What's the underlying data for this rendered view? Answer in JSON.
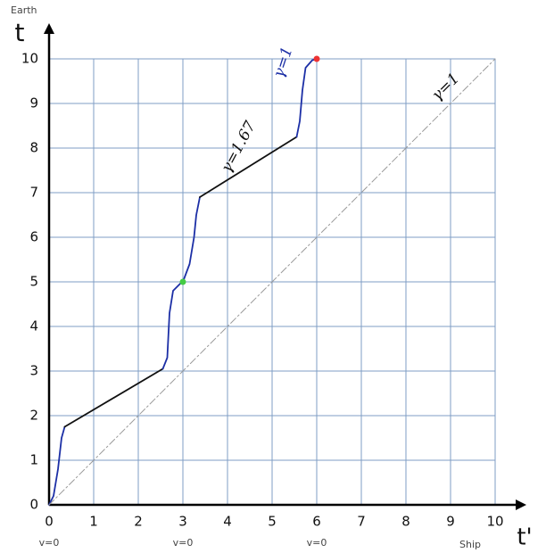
{
  "chart_data": {
    "type": "line",
    "y_label": "t",
    "x_label": "t'",
    "y_caption": "Earth",
    "x_caption": "Ship",
    "xlim": [
      0,
      10
    ],
    "ylim": [
      0,
      10
    ],
    "xticks": [
      0,
      1,
      2,
      3,
      4,
      5,
      6,
      7,
      8,
      9,
      10
    ],
    "yticks": [
      0,
      1,
      2,
      3,
      4,
      5,
      6,
      7,
      8,
      9,
      10
    ],
    "grid": true,
    "grid_color": "#7f9dc4",
    "series": [
      {
        "color": "#1c2fa6",
        "x": [
          0,
          0.1,
          0.2,
          0.28,
          0.35
        ],
        "values": [
          0,
          0.2,
          0.8,
          1.5,
          1.75
        ]
      },
      {
        "color": "#111111",
        "x": [
          0.35,
          2.55
        ],
        "values": [
          1.75,
          3.05
        ]
      },
      {
        "color": "#1c2fa6",
        "x": [
          2.55,
          2.65,
          2.7,
          2.78,
          2.95,
          3.0,
          3.15,
          3.25,
          3.3,
          3.38
        ],
        "values": [
          3.05,
          3.3,
          4.3,
          4.8,
          4.97,
          5.0,
          5.4,
          6.0,
          6.5,
          6.9
        ]
      },
      {
        "color": "#111111",
        "x": [
          3.38,
          5.55
        ],
        "values": [
          6.9,
          8.25
        ]
      },
      {
        "color": "#1c2fa6",
        "x": [
          5.55,
          5.62,
          5.68,
          5.75,
          5.9,
          6.02
        ],
        "values": [
          8.25,
          8.6,
          9.3,
          9.8,
          9.97,
          10.0
        ]
      },
      {
        "color": "#9a9a9a",
        "dashed": true,
        "x": [
          0,
          10
        ],
        "values": [
          0,
          10
        ]
      }
    ],
    "points": [
      {
        "color": "#44cc44",
        "x": 3,
        "y": 5
      },
      {
        "color": "#ee3333",
        "x": 6,
        "y": 10
      }
    ],
    "bottom_labels": [
      {
        "text": "v=0",
        "x": 0
      },
      {
        "text": "v=0",
        "x": 3
      },
      {
        "text": "v=0",
        "x": 6
      }
    ],
    "annotations": [
      {
        "text": "γ=1",
        "color": "#111111"
      },
      {
        "text": "γ=1.67",
        "color": "#111111"
      },
      {
        "text": "γ=1",
        "color": "#1c2fa6"
      }
    ]
  }
}
